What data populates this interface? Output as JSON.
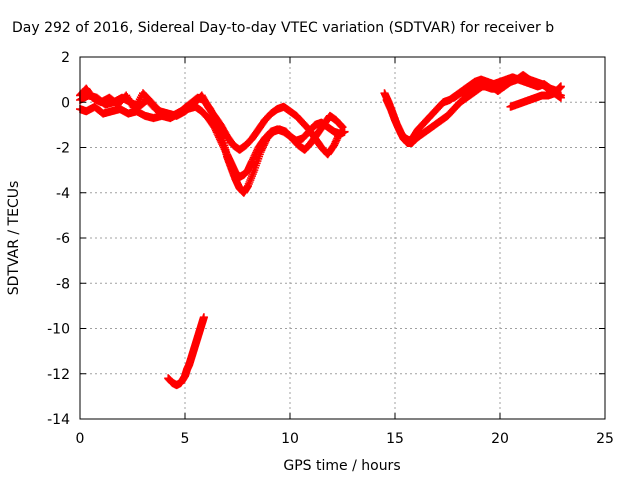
{
  "chart_data": {
    "type": "scatter",
    "title": "Day 292 of 2016, Sidereal Day-to-day VTEC variation (SDTVAR) for receiver b",
    "xlabel": "GPS time / hours",
    "ylabel": "SDTVAR / TECUs",
    "xlim": [
      0,
      25
    ],
    "ylim": [
      -14,
      2
    ],
    "xticks": [
      "0",
      "5",
      "10",
      "15",
      "20",
      "25"
    ],
    "yticks": [
      "2",
      "0",
      "-2",
      "-4",
      "-6",
      "-8",
      "-10",
      "-12",
      "-14"
    ],
    "grid": true,
    "marker_color": "#ff0000",
    "series": [
      {
        "x": [
          0.0,
          0.3,
          0.7,
          1.1,
          1.5,
          1.9,
          2.3,
          2.7,
          3.1,
          3.5,
          3.9,
          4.3,
          4.7,
          5.1,
          5.5,
          5.8,
          6.1,
          6.4,
          6.7,
          7.0,
          7.2,
          7.4,
          7.6,
          7.8,
          8.0,
          8.2,
          8.5,
          8.8,
          9.1,
          9.4,
          9.7,
          10.0,
          10.3,
          10.6,
          10.9,
          11.2,
          11.5,
          11.8,
          12.1,
          12.4,
          12.6
        ],
        "y": [
          -0.3,
          -0.4,
          -0.2,
          -0.5,
          -0.4,
          -0.3,
          -0.5,
          -0.4,
          -0.6,
          -0.7,
          -0.6,
          -0.7,
          -0.5,
          -0.3,
          -0.2,
          -0.4,
          -0.7,
          -1.1,
          -1.7,
          -2.3,
          -2.7,
          -3.1,
          -3.3,
          -3.2,
          -3.0,
          -2.6,
          -2.0,
          -1.6,
          -1.3,
          -1.2,
          -1.3,
          -1.5,
          -1.7,
          -1.6,
          -1.3,
          -1.0,
          -0.9,
          -1.1,
          -1.3,
          -1.4,
          -1.3
        ]
      },
      {
        "x": [
          0.0,
          0.4,
          0.8,
          1.2,
          1.6,
          2.0,
          2.4,
          2.8,
          3.2,
          3.6,
          4.0,
          4.4,
          4.8,
          5.2,
          5.6,
          5.9,
          6.2,
          6.5,
          6.8,
          7.0,
          7.2,
          7.4,
          7.6,
          7.8,
          8.0,
          8.3,
          8.6,
          8.9,
          9.2,
          9.5,
          9.8,
          10.1,
          10.4,
          10.7,
          11.0,
          11.3,
          11.6,
          11.9,
          12.2,
          12.5
        ],
        "y": [
          0.1,
          0.3,
          0.2,
          -0.1,
          0.0,
          0.2,
          0.0,
          -0.2,
          0.1,
          -0.3,
          -0.5,
          -0.6,
          -0.4,
          -0.1,
          0.2,
          0.1,
          -0.3,
          -0.9,
          -1.6,
          -2.4,
          -2.9,
          -3.4,
          -3.8,
          -4.0,
          -3.7,
          -3.0,
          -2.2,
          -1.6,
          -1.3,
          -1.2,
          -1.3,
          -1.6,
          -1.9,
          -2.1,
          -1.8,
          -1.4,
          -1.0,
          -0.6,
          -0.8,
          -1.1
        ]
      },
      {
        "x": [
          0.0,
          0.3,
          0.6,
          1.0,
          1.4,
          1.8,
          2.2,
          2.6,
          3.0,
          3.4,
          3.8,
          4.2,
          4.6,
          5.0,
          5.4,
          5.8,
          6.1,
          6.4,
          6.7,
          7.0,
          7.3,
          7.6,
          7.9,
          8.2,
          8.5,
          8.8,
          9.1,
          9.4,
          9.7,
          10.0,
          10.3,
          10.6,
          10.9,
          11.2,
          11.5,
          11.8,
          12.1,
          12.4
        ],
        "y": [
          0.3,
          0.6,
          0.2,
          0.0,
          0.2,
          -0.1,
          0.3,
          -0.3,
          0.4,
          0.0,
          -0.4,
          -0.5,
          -0.6,
          -0.4,
          -0.1,
          0.3,
          -0.2,
          -0.6,
          -1.0,
          -1.5,
          -1.9,
          -2.1,
          -1.9,
          -1.6,
          -1.2,
          -0.8,
          -0.5,
          -0.3,
          -0.2,
          -0.4,
          -0.6,
          -0.9,
          -1.2,
          -1.6,
          -2.0,
          -2.3,
          -1.9,
          -1.3
        ]
      },
      {
        "x": [
          4.2,
          4.4,
          4.6,
          4.8,
          5.0,
          5.1,
          5.2,
          5.3,
          5.4,
          5.5,
          5.6,
          5.7,
          5.8,
          5.9
        ],
        "y": [
          -12.2,
          -12.4,
          -12.5,
          -12.4,
          -12.1,
          -11.8,
          -11.6,
          -11.3,
          -11.0,
          -10.7,
          -10.4,
          -10.1,
          -9.8,
          -9.5
        ]
      },
      {
        "x": [
          14.5,
          14.7,
          14.9,
          15.1,
          15.3,
          15.5,
          15.7,
          15.9,
          16.1,
          16.4,
          16.7,
          17.0,
          17.3,
          17.6,
          17.9,
          18.2,
          18.5,
          18.8,
          19.1,
          19.4,
          19.7,
          20.0,
          20.3,
          20.6,
          20.9,
          21.2,
          21.5,
          21.8,
          22.1,
          22.4,
          22.7,
          22.9
        ],
        "y": [
          0.4,
          0.0,
          -0.5,
          -1.0,
          -1.4,
          -1.6,
          -1.7,
          -1.5,
          -1.2,
          -0.9,
          -0.6,
          -0.3,
          0.0,
          0.1,
          0.3,
          0.5,
          0.7,
          0.9,
          1.0,
          0.9,
          0.8,
          0.9,
          1.0,
          1.1,
          1.0,
          0.9,
          0.8,
          0.7,
          0.8,
          0.6,
          0.5,
          0.7
        ]
      },
      {
        "x": [
          14.6,
          14.8,
          15.0,
          15.2,
          15.4,
          15.6,
          15.8,
          16.0,
          16.3,
          16.6,
          16.9,
          17.2,
          17.5,
          17.8,
          18.1,
          18.4,
          18.7,
          19.0,
          19.3,
          19.6,
          19.9,
          20.2,
          20.5,
          20.8,
          21.1,
          21.4,
          21.7,
          22.0,
          22.3,
          22.6,
          22.9
        ],
        "y": [
          0.1,
          -0.3,
          -0.8,
          -1.2,
          -1.6,
          -1.8,
          -1.8,
          -1.6,
          -1.4,
          -1.2,
          -1.0,
          -0.8,
          -0.6,
          -0.3,
          0.0,
          0.2,
          0.4,
          0.6,
          0.8,
          0.7,
          0.5,
          0.7,
          0.9,
          1.0,
          1.2,
          1.0,
          0.9,
          0.8,
          0.6,
          0.4,
          0.3
        ]
      },
      {
        "x": [
          17.8,
          18.1,
          18.4,
          18.7,
          19.0,
          19.3,
          19.6,
          19.9,
          20.2
        ],
        "y": [
          0.2,
          0.4,
          0.5,
          0.6,
          0.7,
          0.7,
          0.6,
          0.6,
          0.7
        ]
      },
      {
        "x": [
          20.5,
          20.8,
          21.1,
          21.4,
          21.7,
          22.0,
          22.3,
          22.6,
          22.9
        ],
        "y": [
          -0.2,
          -0.1,
          0.0,
          0.1,
          0.2,
          0.3,
          0.3,
          0.4,
          0.2
        ]
      }
    ]
  }
}
